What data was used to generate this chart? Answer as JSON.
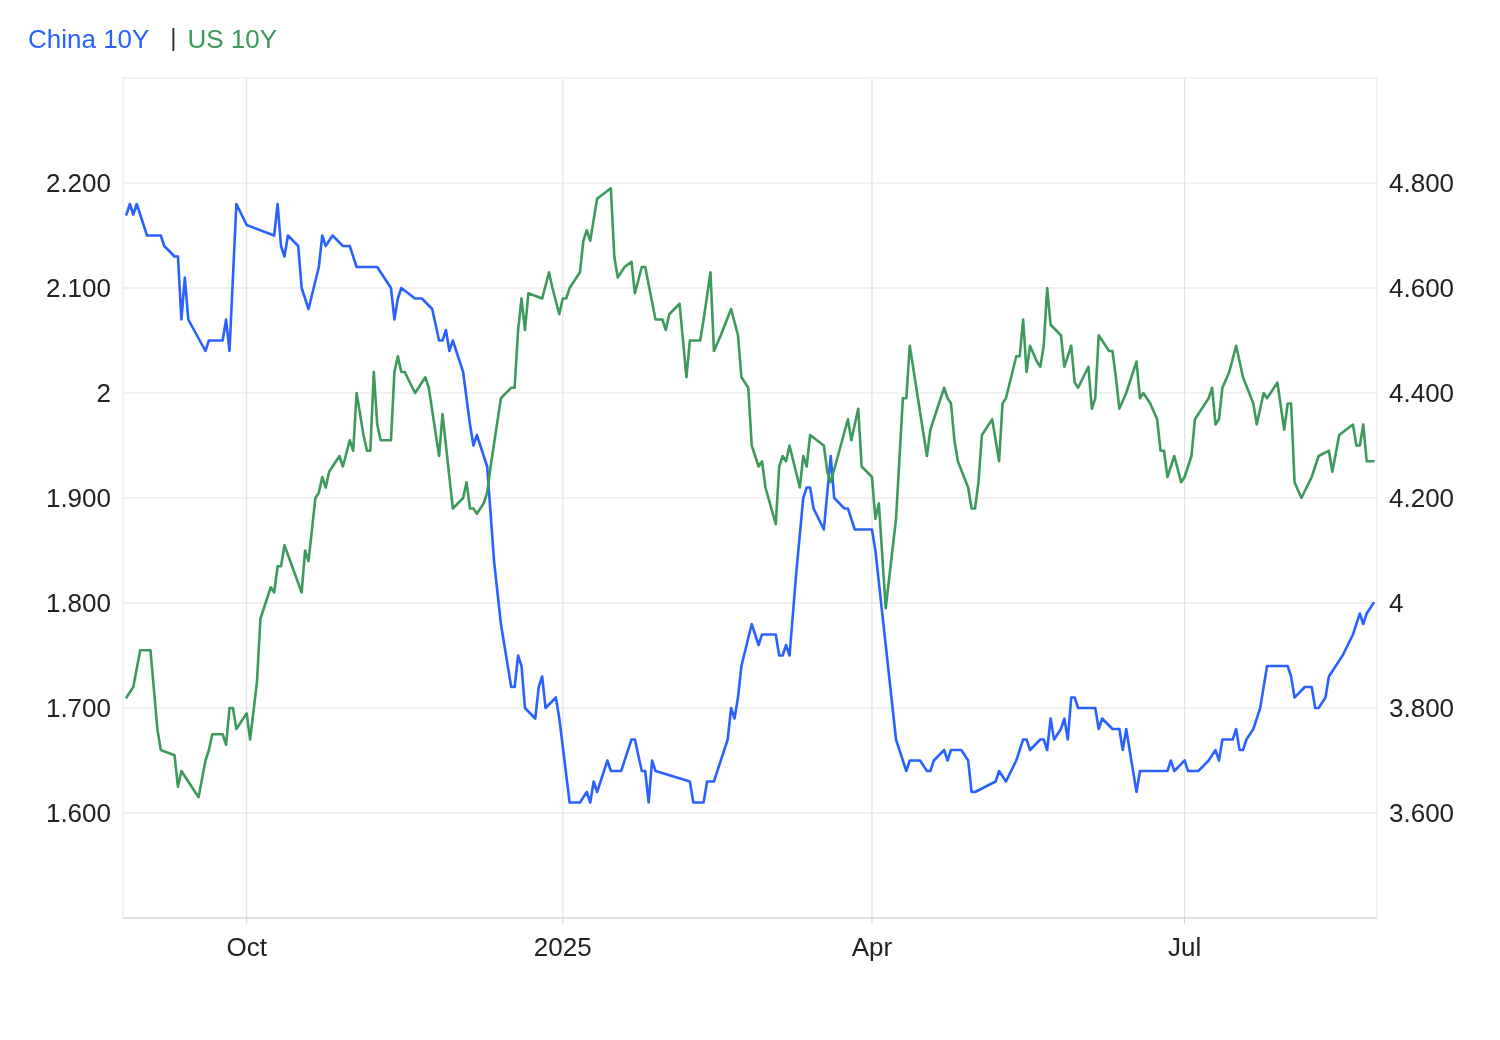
{
  "chart_data": {
    "type": "line",
    "legend": "top left",
    "grid": true,
    "xlim": [
      "2024-08-26",
      "2025-08-26"
    ],
    "xticks": [
      {
        "value": "2024-10-01",
        "label": "Oct"
      },
      {
        "value": "2025-01-01",
        "label": "2025"
      },
      {
        "value": "2025-04-01",
        "label": "Apr"
      },
      {
        "value": "2025-07-01",
        "label": "Jul"
      }
    ],
    "ylim": [
      1.5,
      2.3
    ],
    "yticks": [
      {
        "value": 1.6,
        "label": "1.600"
      },
      {
        "value": 1.7,
        "label": "1.700"
      },
      {
        "value": 1.8,
        "label": "1.800"
      },
      {
        "value": 1.9,
        "label": "1.900"
      },
      2,
      {
        "value": 2.1,
        "label": "2.100"
      },
      {
        "value": 2.2,
        "label": "2.200"
      }
    ],
    "y2lim": [
      3.4,
      5.0
    ],
    "y2ticks": [
      {
        "value": 3.6,
        "label": "3.600"
      },
      {
        "value": 3.8,
        "label": "3.800"
      },
      4,
      {
        "value": 4.2,
        "label": "4.200"
      },
      {
        "value": 4.4,
        "label": "4.400"
      },
      {
        "value": 4.6,
        "label": "4.600"
      },
      {
        "value": 4.8,
        "label": "4.800"
      }
    ],
    "series": [
      {
        "name": "China 10Y",
        "color": "#2962ff",
        "x": [
          "2024-08-27",
          "2024-08-28",
          "2024-08-29",
          "2024-08-30",
          "2024-09-02",
          "2024-09-05",
          "2024-09-06",
          "2024-09-07",
          "2024-09-10",
          "2024-09-11",
          "2024-09-12",
          "2024-09-13",
          "2024-09-14",
          "2024-09-19",
          "2024-09-20",
          "2024-09-24",
          "2024-09-25",
          "2024-09-26",
          "2024-09-28",
          "2024-10-01",
          "2024-10-09",
          "2024-10-10",
          "2024-10-11",
          "2024-10-12",
          "2024-10-13",
          "2024-10-16",
          "2024-10-17",
          "2024-10-19",
          "2024-10-22",
          "2024-10-23",
          "2024-10-24",
          "2024-10-26",
          "2024-10-29",
          "2024-10-31",
          "2024-11-02",
          "2024-11-08",
          "2024-11-12",
          "2024-11-13",
          "2024-11-14",
          "2024-11-15",
          "2024-11-19",
          "2024-11-21",
          "2024-11-24",
          "2024-11-26",
          "2024-11-27",
          "2024-11-28",
          "2024-11-29",
          "2024-11-30",
          "2024-12-03",
          "2024-12-05",
          "2024-12-06",
          "2024-12-07",
          "2024-12-10",
          "2024-12-12",
          "2024-12-14",
          "2024-12-17",
          "2024-12-18",
          "2024-12-19",
          "2024-12-20",
          "2024-12-21",
          "2024-12-24",
          "2024-12-25",
          "2024-12-26",
          "2024-12-27",
          "2024-12-30",
          "2024-12-31",
          "2025-01-03",
          "2025-01-04",
          "2025-01-06",
          "2025-01-08",
          "2025-01-09",
          "2025-01-10",
          "2025-01-11",
          "2025-01-14",
          "2025-01-15",
          "2025-01-18",
          "2025-01-21",
          "2025-01-22",
          "2025-01-24",
          "2025-01-25",
          "2025-01-26",
          "2025-01-27",
          "2025-01-28",
          "2025-02-07",
          "2025-02-08",
          "2025-02-11",
          "2025-02-12",
          "2025-02-14",
          "2025-02-18",
          "2025-02-19",
          "2025-02-20",
          "2025-02-21",
          "2025-02-22",
          "2025-02-25",
          "2025-02-27",
          "2025-02-28",
          "2025-03-04",
          "2025-03-05",
          "2025-03-06",
          "2025-03-07",
          "2025-03-08",
          "2025-03-10",
          "2025-03-12",
          "2025-03-13",
          "2025-03-14",
          "2025-03-15",
          "2025-03-18",
          "2025-03-20",
          "2025-03-21",
          "2025-03-24",
          "2025-03-25",
          "2025-03-27",
          "2025-04-01",
          "2025-04-02",
          "2025-04-04",
          "2025-04-08",
          "2025-04-11",
          "2025-04-12",
          "2025-04-15",
          "2025-04-17",
          "2025-04-18",
          "2025-04-19",
          "2025-04-22",
          "2025-04-23",
          "2025-04-24",
          "2025-04-27",
          "2025-04-29",
          "2025-04-30",
          "2025-05-01",
          "2025-05-07",
          "2025-05-08",
          "2025-05-10",
          "2025-05-13",
          "2025-05-15",
          "2025-05-16",
          "2025-05-17",
          "2025-05-20",
          "2025-05-21",
          "2025-05-22",
          "2025-05-23",
          "2025-05-24",
          "2025-05-26",
          "2025-05-27",
          "2025-05-28",
          "2025-05-29",
          "2025-05-30",
          "2025-05-31",
          "2025-06-05",
          "2025-06-06",
          "2025-06-07",
          "2025-06-10",
          "2025-06-12",
          "2025-06-13",
          "2025-06-14",
          "2025-06-16",
          "2025-06-17",
          "2025-06-18",
          "2025-06-26",
          "2025-06-27",
          "2025-06-28",
          "2025-07-01",
          "2025-07-02",
          "2025-07-05",
          "2025-07-08",
          "2025-07-10",
          "2025-07-11",
          "2025-07-12",
          "2025-07-15",
          "2025-07-16",
          "2025-07-17",
          "2025-07-18",
          "2025-07-19",
          "2025-07-21",
          "2025-07-23",
          "2025-07-25",
          "2025-07-26",
          "2025-07-31",
          "2025-08-01",
          "2025-08-02",
          "2025-08-05",
          "2025-08-06",
          "2025-08-07",
          "2025-08-08",
          "2025-08-09",
          "2025-08-11",
          "2025-08-12",
          "2025-08-14",
          "2025-08-16",
          "2025-08-19",
          "2025-08-21",
          "2025-08-22",
          "2025-08-23",
          "2025-08-25"
        ],
        "values": [
          2.17,
          2.18,
          2.17,
          2.18,
          2.15,
          2.15,
          2.15,
          2.14,
          2.13,
          2.13,
          2.07,
          2.11,
          2.07,
          2.04,
          2.05,
          2.05,
          2.07,
          2.04,
          2.18,
          2.16,
          2.15,
          2.18,
          2.14,
          2.13,
          2.15,
          2.14,
          2.1,
          2.08,
          2.12,
          2.15,
          2.14,
          2.15,
          2.14,
          2.14,
          2.12,
          2.12,
          2.1,
          2.07,
          2.09,
          2.1,
          2.09,
          2.09,
          2.08,
          2.05,
          2.05,
          2.06,
          2.04,
          2.05,
          2.02,
          1.97,
          1.95,
          1.96,
          1.93,
          1.84,
          1.78,
          1.72,
          1.72,
          1.75,
          1.74,
          1.7,
          1.69,
          1.72,
          1.73,
          1.7,
          1.71,
          1.69,
          1.61,
          1.61,
          1.61,
          1.62,
          1.61,
          1.63,
          1.62,
          1.65,
          1.64,
          1.64,
          1.67,
          1.67,
          1.64,
          1.64,
          1.61,
          1.65,
          1.64,
          1.63,
          1.61,
          1.61,
          1.63,
          1.63,
          1.67,
          1.7,
          1.69,
          1.71,
          1.74,
          1.78,
          1.76,
          1.77,
          1.77,
          1.75,
          1.75,
          1.76,
          1.75,
          1.83,
          1.9,
          1.91,
          1.91,
          1.89,
          1.87,
          1.94,
          1.9,
          1.89,
          1.89,
          1.87,
          1.87,
          1.85,
          1.79,
          1.67,
          1.64,
          1.65,
          1.65,
          1.64,
          1.64,
          1.65,
          1.66,
          1.65,
          1.66,
          1.66,
          1.65,
          1.62,
          1.62,
          1.63,
          1.64,
          1.63,
          1.65,
          1.67,
          1.67,
          1.66,
          1.67,
          1.67,
          1.66,
          1.69,
          1.67,
          1.68,
          1.69,
          1.67,
          1.71,
          1.71,
          1.7,
          1.7,
          1.68,
          1.69,
          1.68,
          1.68,
          1.66,
          1.68,
          1.64,
          1.62,
          1.64,
          1.64,
          1.65,
          1.64,
          1.65,
          1.64,
          1.64,
          1.65,
          1.66,
          1.65,
          1.67,
          1.67,
          1.68,
          1.66,
          1.66,
          1.67,
          1.68,
          1.7,
          1.74,
          1.74,
          1.74,
          1.73,
          1.71,
          1.72,
          1.72,
          1.72,
          1.7,
          1.7,
          1.71,
          1.73,
          1.74,
          1.75,
          1.77,
          1.79,
          1.78,
          1.79,
          1.8
        ]
      },
      {
        "name": "US 10Y",
        "color": "#3d9a5c",
        "axis": "y2",
        "x": [
          "2024-08-27",
          "2024-08-29",
          "2024-08-31",
          "2024-09-03",
          "2024-09-05",
          "2024-09-06",
          "2024-09-10",
          "2024-09-11",
          "2024-09-12",
          "2024-09-14",
          "2024-09-17",
          "2024-09-19",
          "2024-09-20",
          "2024-09-21",
          "2024-09-24",
          "2024-09-25",
          "2024-09-26",
          "2024-09-27",
          "2024-09-28",
          "2024-10-01",
          "2024-10-02",
          "2024-10-04",
          "2024-10-05",
          "2024-10-08",
          "2024-10-09",
          "2024-10-10",
          "2024-10-11",
          "2024-10-12",
          "2024-10-17",
          "2024-10-18",
          "2024-10-19",
          "2024-10-21",
          "2024-10-22",
          "2024-10-23",
          "2024-10-24",
          "2024-10-25",
          "2024-10-28",
          "2024-10-29",
          "2024-10-31",
          "2024-11-01",
          "2024-11-02",
          "2024-11-04",
          "2024-11-05",
          "2024-11-06",
          "2024-11-07",
          "2024-11-08",
          "2024-11-09",
          "2024-11-12",
          "2024-11-13",
          "2024-11-14",
          "2024-11-15",
          "2024-11-16",
          "2024-11-19",
          "2024-11-20",
          "2024-11-22",
          "2024-11-23",
          "2024-11-26",
          "2024-11-27",
          "2024-11-29",
          "2024-11-30",
          "2024-12-03",
          "2024-12-04",
          "2024-12-05",
          "2024-12-06",
          "2024-12-07",
          "2024-12-09",
          "2024-12-10",
          "2024-12-11",
          "2024-12-14",
          "2024-12-17",
          "2024-12-18",
          "2024-12-19",
          "2024-12-20",
          "2024-12-21",
          "2024-12-22",
          "2024-12-26",
          "2024-12-28",
          "2024-12-29",
          "2024-12-31",
          "2025-01-01",
          "2025-01-02",
          "2025-01-03",
          "2025-01-06",
          "2025-01-07",
          "2025-01-08",
          "2025-01-09",
          "2025-01-11",
          "2025-01-15",
          "2025-01-16",
          "2025-01-17",
          "2025-01-19",
          "2025-01-21",
          "2025-01-22",
          "2025-01-24",
          "2025-01-25",
          "2025-01-28",
          "2025-01-30",
          "2025-01-31",
          "2025-02-01",
          "2025-02-04",
          "2025-02-05",
          "2025-02-06",
          "2025-02-07",
          "2025-02-10",
          "2025-02-11",
          "2025-02-13",
          "2025-02-14",
          "2025-02-16",
          "2025-02-19",
          "2025-02-21",
          "2025-02-22",
          "2025-02-24",
          "2025-02-25",
          "2025-02-27",
          "2025-02-28",
          "2025-03-01",
          "2025-03-04",
          "2025-03-05",
          "2025-03-06",
          "2025-03-07",
          "2025-03-08",
          "2025-03-11",
          "2025-03-12",
          "2025-03-13",
          "2025-03-14",
          "2025-03-16",
          "2025-03-18",
          "2025-03-19",
          "2025-03-20",
          "2025-03-25",
          "2025-03-26",
          "2025-03-28",
          "2025-03-29",
          "2025-04-01",
          "2025-04-02",
          "2025-04-03",
          "2025-04-05",
          "2025-04-08",
          "2025-04-10",
          "2025-04-11",
          "2025-04-12",
          "2025-04-17",
          "2025-04-18",
          "2025-04-22",
          "2025-04-23",
          "2025-04-24",
          "2025-04-25",
          "2025-04-26",
          "2025-04-29",
          "2025-04-30",
          "2025-05-01",
          "2025-05-02",
          "2025-05-03",
          "2025-05-06",
          "2025-05-08",
          "2025-05-09",
          "2025-05-10",
          "2025-05-13",
          "2025-05-14",
          "2025-05-15",
          "2025-05-16",
          "2025-05-17",
          "2025-05-19",
          "2025-05-20",
          "2025-05-21",
          "2025-05-22",
          "2025-05-23",
          "2025-05-26",
          "2025-05-27",
          "2025-05-29",
          "2025-05-30",
          "2025-05-31",
          "2025-06-03",
          "2025-06-04",
          "2025-06-05",
          "2025-06-06",
          "2025-06-09",
          "2025-06-10",
          "2025-06-11",
          "2025-06-12",
          "2025-06-14",
          "2025-06-17",
          "2025-06-18",
          "2025-06-19",
          "2025-06-20",
          "2025-06-21",
          "2025-06-23",
          "2025-06-24",
          "2025-06-25",
          "2025-06-26",
          "2025-06-28",
          "2025-06-30",
          "2025-07-01",
          "2025-07-03",
          "2025-07-04",
          "2025-07-08",
          "2025-07-09",
          "2025-07-10",
          "2025-07-11",
          "2025-07-12",
          "2025-07-14",
          "2025-07-16",
          "2025-07-17",
          "2025-07-18",
          "2025-07-21",
          "2025-07-22",
          "2025-07-24",
          "2025-07-25",
          "2025-07-26",
          "2025-07-28",
          "2025-07-30",
          "2025-07-31",
          "2025-08-01",
          "2025-08-02",
          "2025-08-04",
          "2025-08-07",
          "2025-08-09",
          "2025-08-12",
          "2025-08-13",
          "2025-08-15",
          "2025-08-19",
          "2025-08-20",
          "2025-08-21",
          "2025-08-22",
          "2025-08-23",
          "2025-08-25"
        ],
        "values": [
          3.82,
          3.84,
          3.91,
          3.91,
          3.76,
          3.72,
          3.71,
          3.65,
          3.68,
          3.66,
          3.63,
          3.7,
          3.72,
          3.75,
          3.75,
          3.73,
          3.8,
          3.8,
          3.76,
          3.79,
          3.74,
          3.85,
          3.97,
          4.03,
          4.02,
          4.07,
          4.07,
          4.11,
          4.02,
          4.1,
          4.08,
          4.2,
          4.21,
          4.24,
          4.22,
          4.25,
          4.28,
          4.26,
          4.31,
          4.29,
          4.4,
          4.32,
          4.29,
          4.29,
          4.44,
          4.34,
          4.31,
          4.31,
          4.44,
          4.47,
          4.44,
          4.44,
          4.4,
          4.41,
          4.43,
          4.41,
          4.28,
          4.36,
          4.24,
          4.18,
          4.2,
          4.23,
          4.18,
          4.18,
          4.17,
          4.19,
          4.21,
          4.26,
          4.39,
          4.41,
          4.41,
          4.52,
          4.58,
          4.52,
          4.59,
          4.58,
          4.63,
          4.6,
          4.55,
          4.58,
          4.58,
          4.6,
          4.63,
          4.69,
          4.71,
          4.69,
          4.77,
          4.79,
          4.66,
          4.62,
          4.64,
          4.65,
          4.59,
          4.64,
          4.64,
          4.54,
          4.54,
          4.52,
          4.55,
          4.57,
          4.5,
          4.43,
          4.5,
          4.5,
          4.54,
          4.63,
          4.48,
          4.51,
          4.56,
          4.51,
          4.43,
          4.41,
          4.3,
          4.26,
          4.27,
          4.22,
          4.15,
          4.26,
          4.28,
          4.27,
          4.3,
          4.22,
          4.28,
          4.26,
          4.32,
          4.31,
          4.3,
          4.25,
          4.23,
          4.35,
          4.31,
          4.37,
          4.26,
          4.24,
          4.16,
          4.19,
          3.99,
          4.16,
          4.39,
          4.39,
          4.49,
          4.28,
          4.33,
          4.41,
          4.39,
          4.38,
          4.31,
          4.27,
          4.22,
          4.18,
          4.18,
          4.23,
          4.32,
          4.35,
          4.27,
          4.38,
          4.39,
          4.47,
          4.47,
          4.54,
          4.44,
          4.49,
          4.46,
          4.45,
          4.49,
          4.6,
          4.53,
          4.51,
          4.45,
          4.49,
          4.42,
          4.41,
          4.45,
          4.37,
          4.39,
          4.51,
          4.48,
          4.48,
          4.43,
          4.37,
          4.4,
          4.46,
          4.39,
          4.4,
          4.39,
          4.38,
          4.35,
          4.29,
          4.29,
          4.24,
          4.28,
          4.23,
          4.24,
          4.28,
          4.35,
          4.39,
          4.41,
          4.34,
          4.35,
          4.41,
          4.44,
          4.49,
          4.46,
          4.43,
          4.38,
          4.34,
          4.4,
          4.39,
          4.4,
          4.42,
          4.33,
          4.38,
          4.38,
          4.23,
          4.2,
          4.24,
          4.28,
          4.29,
          4.25,
          4.32,
          4.34,
          4.3,
          4.3,
          4.34,
          4.27,
          4.27
        ]
      }
    ]
  }
}
